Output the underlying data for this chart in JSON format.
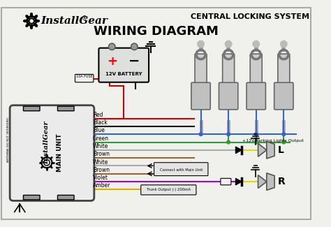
{
  "bg_color": "#f0f0ec",
  "title_right": "CENTRAL LOCKING SYSTEM",
  "title_main": "WIRING DIAGRAM",
  "brand": "InstallGear",
  "wire_labels": [
    "Red",
    "Black",
    "Blue",
    "Green",
    "White",
    "Brown",
    "White",
    "Brown",
    "Violet",
    "Amber"
  ],
  "wire_colors": [
    "#cc0000",
    "#111111",
    "#3366cc",
    "#339933",
    "#aaaaaa",
    "#996633",
    "#aaaaaa",
    "#996633",
    "#aa00cc",
    "#ddaa00"
  ],
  "figsize": [
    4.74,
    3.25
  ],
  "dpi": 100
}
